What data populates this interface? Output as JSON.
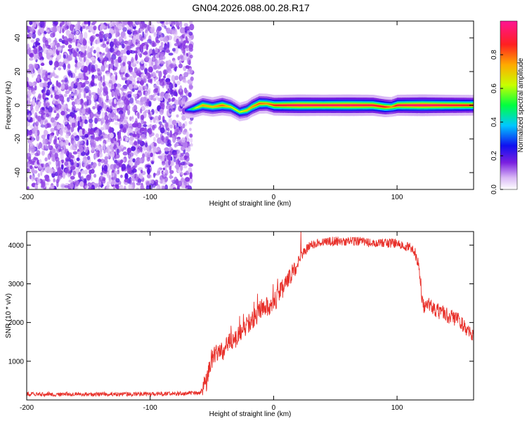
{
  "title": "GN04.2026.088.00.28.R17",
  "chart_data": [
    {
      "type": "heatmap",
      "title": "GN04.2026.088.00.28.R17",
      "xlabel": "Height of straight line (km)",
      "ylabel": "Frequency (Hz)",
      "xlim": [
        -200,
        162
      ],
      "ylim": [
        -50,
        50
      ],
      "xticks": [
        -200,
        -100,
        0,
        100
      ],
      "yticks": [
        -40,
        -20,
        0,
        20,
        40
      ],
      "noise_region_x": [
        -200,
        -66
      ],
      "signal_track": [
        {
          "x": -72,
          "freq": -3,
          "amp": 0.25
        },
        {
          "x": -65,
          "freq": -2,
          "amp": 0.55
        },
        {
          "x": -58,
          "freq": 0,
          "amp": 0.75
        },
        {
          "x": -50,
          "freq": -1,
          "amp": 0.7
        },
        {
          "x": -42,
          "freq": 0,
          "amp": 0.8
        },
        {
          "x": -35,
          "freq": -1,
          "amp": 0.65
        },
        {
          "x": -28,
          "freq": -4,
          "amp": 0.6
        },
        {
          "x": -22,
          "freq": -3,
          "amp": 0.7
        },
        {
          "x": -18,
          "freq": -1,
          "amp": 0.75
        },
        {
          "x": -12,
          "freq": 1,
          "amp": 0.8
        },
        {
          "x": -6,
          "freq": 1,
          "amp": 0.75
        },
        {
          "x": 0,
          "freq": 0,
          "amp": 0.85
        },
        {
          "x": 20,
          "freq": 0,
          "amp": 0.95
        },
        {
          "x": 40,
          "freq": 0,
          "amp": 0.92
        },
        {
          "x": 60,
          "freq": 0,
          "amp": 0.95
        },
        {
          "x": 80,
          "freq": 0,
          "amp": 0.9
        },
        {
          "x": 90,
          "freq": -1,
          "amp": 0.85
        },
        {
          "x": 95,
          "freq": -1,
          "amp": 0.75
        },
        {
          "x": 100,
          "freq": 0,
          "amp": 0.9
        },
        {
          "x": 120,
          "freq": 0,
          "amp": 0.97
        },
        {
          "x": 140,
          "freq": 0,
          "amp": 0.9
        },
        {
          "x": 162,
          "freq": 0,
          "amp": 0.85
        }
      ]
    },
    {
      "type": "line",
      "xlabel": "Height of straight line (km)",
      "ylabel": "SNR (10 * v/v)",
      "xlim": [
        -200,
        162
      ],
      "ylim": [
        0,
        4350
      ],
      "xticks": [
        -200,
        -100,
        0,
        100
      ],
      "yticks": [
        1000,
        2000,
        3000,
        4000
      ],
      "color": "#e8302a",
      "series": [
        {
          "name": "SNR",
          "x": [
            -200,
            -150,
            -100,
            -60,
            -55,
            -50,
            -45,
            -40,
            -35,
            -30,
            -25,
            -20,
            -15,
            -10,
            -5,
            0,
            5,
            10,
            15,
            20,
            25,
            30,
            40,
            50,
            60,
            70,
            80,
            90,
            100,
            105,
            110,
            115,
            118,
            121,
            125,
            130,
            140,
            150,
            162
          ],
          "values": [
            150,
            150,
            150,
            180,
            400,
            1100,
            1200,
            1300,
            1500,
            1600,
            1800,
            2000,
            2150,
            2400,
            2400,
            2500,
            2750,
            3000,
            3300,
            3600,
            3850,
            4000,
            4100,
            4100,
            4100,
            4100,
            4050,
            4050,
            4050,
            4000,
            3950,
            3800,
            3400,
            2400,
            2500,
            2350,
            2200,
            2050,
            1600
          ]
        }
      ]
    }
  ],
  "colorbar": {
    "label": "Normalized spectral amplitude",
    "ticks": [
      "0.0",
      "0.2",
      "0.4",
      "0.6",
      "0.8"
    ],
    "tick_values": [
      0,
      0.2,
      0.4,
      0.6,
      0.8
    ]
  }
}
